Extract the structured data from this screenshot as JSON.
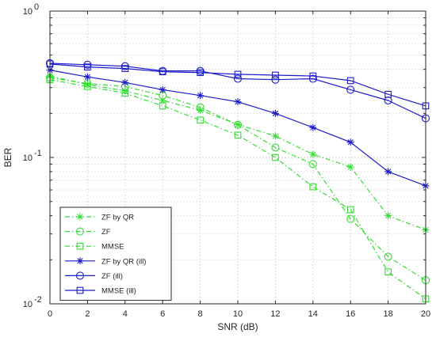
{
  "chart_data": {
    "type": "line",
    "xlabel": "SNR (dB)",
    "ylabel": "BER",
    "xscale": "linear",
    "yscale": "log",
    "xlim": [
      0,
      20
    ],
    "ylim": [
      0.01,
      1
    ],
    "x_ticks": [
      0,
      2,
      4,
      6,
      8,
      10,
      12,
      14,
      16,
      18,
      20
    ],
    "y_ticks": [
      {
        "value": 1,
        "base": "10",
        "exp": "0"
      },
      {
        "value": 0.1,
        "base": "10",
        "exp": "-1"
      },
      {
        "value": 0.01,
        "base": "10",
        "exp": "-2"
      }
    ],
    "grid": true,
    "legend_position": "bottom-left",
    "x": [
      0,
      2,
      4,
      6,
      8,
      10,
      12,
      14,
      16,
      18,
      20
    ],
    "series": [
      {
        "name": "ZF by QR",
        "color": "#33dd33",
        "marker": "star",
        "dash": "dashdot",
        "values": [
          0.36,
          0.315,
          0.285,
          0.245,
          0.21,
          0.168,
          0.14,
          0.105,
          0.086,
          0.04,
          0.032
        ]
      },
      {
        "name": "ZF",
        "color": "#33dd33",
        "marker": "circle",
        "dash": "dashdot",
        "values": [
          0.35,
          0.32,
          0.305,
          0.265,
          0.22,
          0.167,
          0.117,
          0.09,
          0.038,
          0.021,
          0.0145
        ]
      },
      {
        "name": "MMSE",
        "color": "#33dd33",
        "marker": "square",
        "dash": "dashdot",
        "values": [
          0.34,
          0.305,
          0.275,
          0.225,
          0.18,
          0.142,
          0.1,
          0.063,
          0.044,
          0.0165,
          0.0108
        ]
      },
      {
        "name": "ZF by QR (ill)",
        "color": "#1a1acc",
        "marker": "star",
        "dash": "solid",
        "values": [
          0.395,
          0.355,
          0.325,
          0.29,
          0.265,
          0.24,
          0.2,
          0.16,
          0.127,
          0.08,
          0.064
        ]
      },
      {
        "name": "ZF (ill)",
        "color": "#1a1acc",
        "marker": "circle",
        "dash": "solid",
        "values": [
          0.44,
          0.43,
          0.42,
          0.39,
          0.39,
          0.345,
          0.34,
          0.345,
          0.29,
          0.245,
          0.185
        ]
      },
      {
        "name": "MMSE (ill)",
        "color": "#1a1acc",
        "marker": "square",
        "dash": "solid",
        "values": [
          0.435,
          0.415,
          0.405,
          0.385,
          0.38,
          0.37,
          0.365,
          0.36,
          0.335,
          0.27,
          0.225
        ]
      }
    ]
  }
}
